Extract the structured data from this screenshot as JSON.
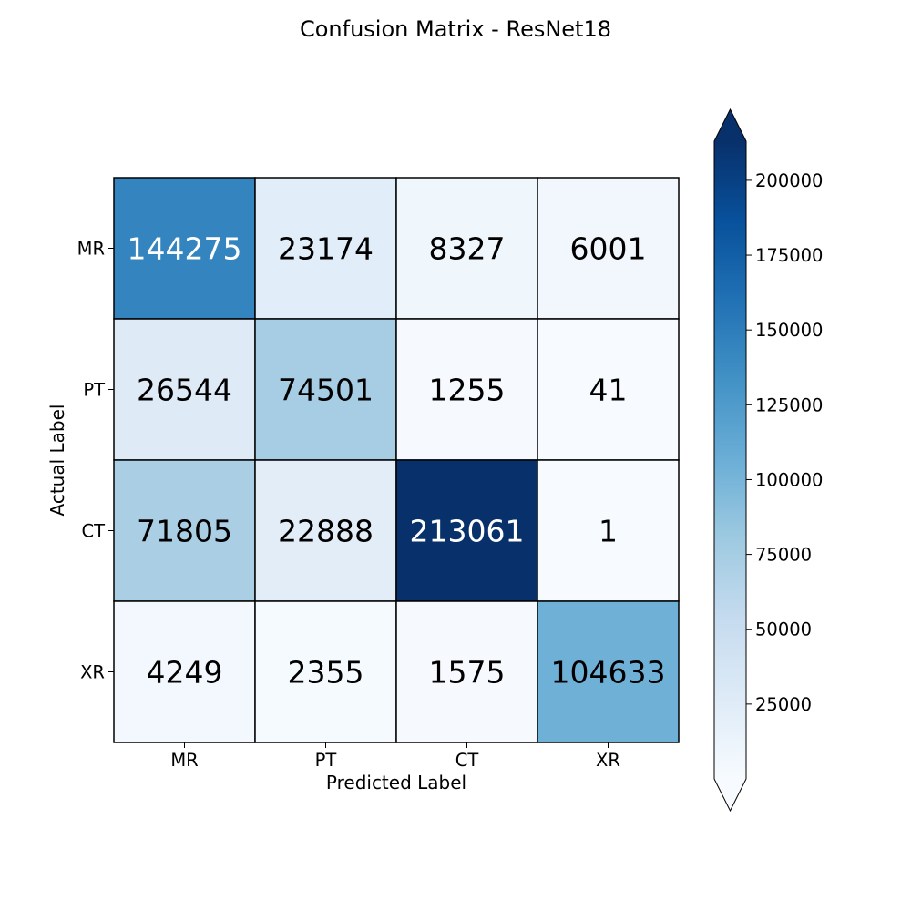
{
  "chart_data": {
    "type": "heatmap",
    "title": "Confusion Matrix - ResNet18",
    "xlabel": "Predicted Label",
    "ylabel": "Actual Label",
    "x_categories": [
      "MR",
      "PT",
      "CT",
      "XR"
    ],
    "y_categories": [
      "MR",
      "PT",
      "CT",
      "XR"
    ],
    "values": [
      [
        144275,
        23174,
        8327,
        6001
      ],
      [
        26544,
        74501,
        1255,
        41
      ],
      [
        71805,
        22888,
        213061,
        1
      ],
      [
        4249,
        2355,
        1575,
        104633
      ]
    ],
    "colormap": "Blues",
    "color_range": [
      1,
      213061
    ],
    "colorbar": {
      "ticks": [
        25000,
        50000,
        75000,
        100000,
        125000,
        150000,
        175000,
        200000
      ],
      "extend": "both",
      "placement": "right"
    },
    "grid": false
  }
}
